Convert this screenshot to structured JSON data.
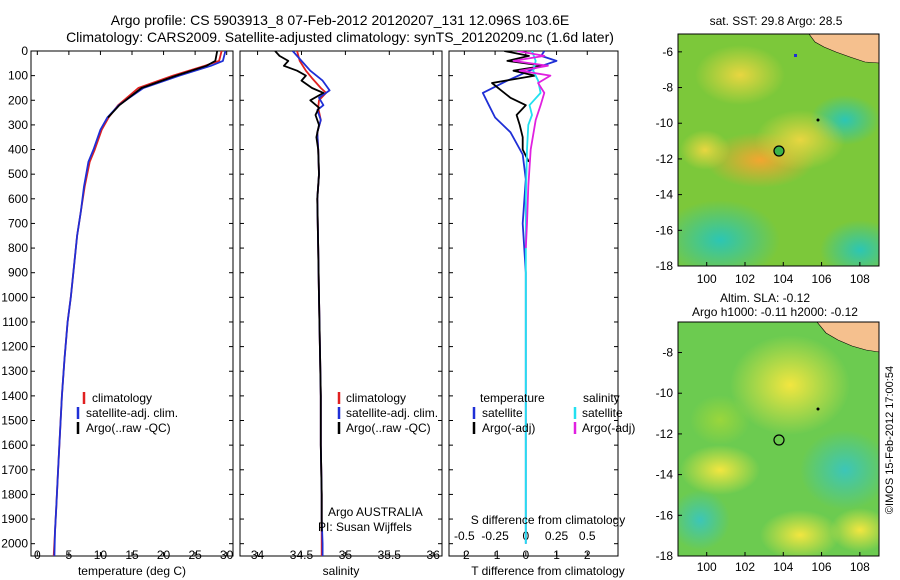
{
  "header": {
    "line1": "Argo profile: CS 5903913_8 07-Feb-2012 20120207_131 12.096S 103.6E",
    "line2": "Climatology: CARS2009. Satellite-adjusted climatology: synTS_20120209.nc (1.6d later)"
  },
  "side_label": "©IMOS 15-Feb-2012 17:00:54",
  "panel_temp": {
    "xlabel": "temperature (deg C)",
    "legend": [
      "climatology",
      "satellite-adj. clim.",
      "Argo(..raw -QC)"
    ]
  },
  "panel_sal": {
    "xlabel": "salinity",
    "legend": [
      "climatology",
      "satellite-adj. clim.",
      "Argo(..raw -QC)"
    ],
    "note1": "Argo AUSTRALIA",
    "note2": "PI: Susan Wijffels"
  },
  "panel_diff": {
    "xlabel": "T difference from climatology",
    "top_xlabel": "S difference from climatology",
    "legend_temperature_head": "temperature",
    "legend_salinity_head": "salinity",
    "legend_temp": [
      "satellite",
      "Argo(-adj)"
    ],
    "legend_sal": [
      "satellite",
      "Argo(-adj)"
    ]
  },
  "map_sst": {
    "title": "sat. SST: 29.8 Argo: 28.5"
  },
  "map_sla": {
    "title1": "Altim. SLA: -0.12",
    "title2": "Argo h1000: -0.11 h2000: -0.12"
  },
  "colors": {
    "climatology": "#e02020",
    "satellite": "#1f2fd6",
    "argo": "#000000",
    "sat_salinity": "#22e0f0",
    "argo_salinity": "#e020e0",
    "land": "#f5c08e"
  },
  "chart_data": [
    {
      "type": "line",
      "name": "temperature profile",
      "xlim": [
        -1,
        31
      ],
      "ylim": [
        2050,
        0
      ],
      "xticks": [
        0,
        5,
        10,
        15,
        20,
        25,
        30
      ],
      "yticks": [
        0,
        100,
        200,
        300,
        400,
        500,
        600,
        700,
        800,
        900,
        1000,
        1100,
        1200,
        1300,
        1400,
        1500,
        1600,
        1700,
        1800,
        1900,
        2000
      ],
      "series": [
        {
          "name": "climatology",
          "color": "#e02020",
          "x": [
            29.2,
            28.8,
            26.5,
            21.5,
            16.0,
            12.8,
            11.3,
            10.2,
            9.1,
            8.3,
            7.5,
            6.9,
            6.3,
            5.9,
            5.3,
            4.8,
            4.3,
            3.9,
            3.6,
            3.3,
            3.0,
            2.8,
            2.6
          ],
          "y": [
            0,
            40,
            60,
            100,
            150,
            220,
            270,
            320,
            400,
            450,
            550,
            650,
            750,
            850,
            1000,
            1100,
            1250,
            1400,
            1550,
            1700,
            1850,
            1950,
            2050
          ]
        },
        {
          "name": "satellite-adj. clim.",
          "color": "#1f2fd6",
          "x": [
            29.8,
            29.4,
            27.5,
            22.5,
            16.8,
            12.9,
            11.1,
            10.0,
            8.9,
            8.1,
            7.4,
            6.9,
            6.3,
            5.9,
            5.3,
            4.8,
            4.3,
            3.9,
            3.6,
            3.3,
            3.0,
            2.8,
            2.7
          ],
          "y": [
            0,
            40,
            60,
            100,
            150,
            220,
            270,
            320,
            400,
            450,
            550,
            650,
            750,
            850,
            1000,
            1100,
            1250,
            1400,
            1550,
            1700,
            1850,
            1950,
            2050
          ]
        },
        {
          "name": "Argo(..raw -QC)",
          "color": "#000000",
          "x": [
            28.5,
            28.2,
            26.8,
            22.0,
            16.5,
            13.0,
            11.2
          ],
          "y": [
            0,
            40,
            60,
            100,
            150,
            220,
            270
          ]
        }
      ]
    },
    {
      "type": "line",
      "name": "salinity profile",
      "xlim": [
        33.8,
        36.1
      ],
      "ylim": [
        2050,
        0
      ],
      "xticks": [
        34,
        34.5,
        35,
        35.5,
        36
      ],
      "series": [
        {
          "name": "climatology",
          "color": "#e02020",
          "x": [
            34.45,
            34.48,
            34.55,
            34.62,
            34.72,
            34.78,
            34.7,
            34.69,
            34.72,
            34.68,
            34.69,
            34.7,
            34.68,
            34.69,
            34.7,
            34.71,
            34.72,
            34.72,
            34.73,
            34.73,
            34.73,
            34.73
          ],
          "y": [
            0,
            40,
            80,
            110,
            150,
            170,
            200,
            230,
            280,
            330,
            400,
            500,
            600,
            800,
            1000,
            1200,
            1400,
            1600,
            1800,
            1900,
            2000,
            2050
          ]
        },
        {
          "name": "satellite-adj. clim.",
          "color": "#1f2fd6",
          "x": [
            34.4,
            34.5,
            34.6,
            34.74,
            34.82,
            34.7,
            34.75,
            34.68,
            34.72,
            34.68,
            34.69,
            34.7,
            34.68,
            34.69,
            34.7,
            34.71,
            34.72,
            34.72,
            34.73,
            34.73,
            34.74,
            34.74
          ],
          "y": [
            0,
            40,
            80,
            120,
            160,
            190,
            220,
            240,
            280,
            330,
            400,
            500,
            600,
            800,
            1000,
            1200,
            1400,
            1600,
            1800,
            1900,
            2000,
            2050
          ]
        },
        {
          "name": "Argo(..raw -QC)",
          "color": "#000000",
          "x": [
            34.2,
            34.25,
            34.35,
            34.3,
            34.45,
            34.55,
            34.5,
            34.62,
            34.75,
            34.6,
            34.7,
            34.66,
            34.7,
            34.67,
            34.69,
            34.7,
            34.68,
            34.69,
            34.7,
            34.71,
            34.72,
            34.72,
            34.73,
            34.73
          ],
          "y": [
            0,
            20,
            40,
            60,
            80,
            100,
            120,
            150,
            170,
            200,
            230,
            260,
            300,
            350,
            400,
            500,
            600,
            800,
            1000,
            1200,
            1400,
            1600,
            1800,
            1950
          ]
        }
      ]
    },
    {
      "type": "line",
      "name": "difference from climatology",
      "xlim": [
        -2.5,
        3.0
      ],
      "x2lim": [
        -0.625,
        0.75
      ],
      "ylim": [
        2050,
        0
      ],
      "xticks": [
        -2,
        -1,
        0,
        1,
        2
      ],
      "x2ticks": [
        -0.5,
        -0.25,
        0,
        0.25,
        0.5
      ],
      "series": [
        {
          "name": "satellite (temperature)",
          "color": "#1f2fd6",
          "x": [
            0.6,
            0.5,
            1.0,
            0.3,
            -0.6,
            -1.4,
            -1.2,
            -1.0,
            -0.5,
            -0.1,
            0.0,
            -0.1,
            0.0,
            0.0,
            0.0,
            0.0,
            0.0,
            0.0
          ],
          "y": [
            0,
            20,
            40,
            70,
            120,
            170,
            220,
            270,
            330,
            420,
            520,
            700,
            900,
            1100,
            1400,
            1700,
            1900,
            2000
          ]
        },
        {
          "name": "Argo(-adj) (temperature)",
          "color": "#000000",
          "x": [
            -0.7,
            0.1,
            -0.6,
            0.6,
            -0.4,
            0.3,
            -1.1,
            -0.8,
            -0.5,
            0.0,
            -0.3,
            -0.2,
            -0.1,
            -0.1,
            0.1
          ],
          "y": [
            0,
            20,
            40,
            60,
            80,
            100,
            130,
            160,
            190,
            220,
            260,
            300,
            350,
            400,
            450
          ]
        },
        {
          "name": "satellite (salinity)",
          "color": "#22e0f0",
          "x": [
            0.05,
            0.08,
            0.06,
            0.1,
            0.12,
            0.03,
            0.05,
            0.02,
            0.01,
            0.0,
            0.0,
            0.0,
            0.0,
            0.0
          ],
          "y": [
            0,
            40,
            80,
            120,
            170,
            220,
            260,
            300,
            400,
            600,
            900,
            1300,
            1700,
            2000
          ]
        },
        {
          "name": "Argo(-adj) (salinity)",
          "color": "#e020e0",
          "x": [
            -0.07,
            0.15,
            -0.1,
            0.18,
            -0.05,
            0.2,
            0.1,
            0.15,
            0.12,
            0.08,
            0.04,
            0.02,
            0.01,
            0.0
          ],
          "y": [
            0,
            20,
            40,
            60,
            80,
            100,
            130,
            170,
            220,
            280,
            400,
            550,
            700,
            800
          ]
        }
      ]
    },
    {
      "type": "heatmap",
      "name": "sat. SST map",
      "xlim": [
        98.5,
        109
      ],
      "ylim": [
        -18,
        -5
      ],
      "xticks": [
        100,
        102,
        104,
        106,
        108
      ],
      "yticks": [
        -6,
        -8,
        -10,
        -12,
        -14,
        -16,
        -18
      ],
      "argo_position": {
        "lon": 103.6,
        "lat": -12.096
      }
    },
    {
      "type": "heatmap",
      "name": "altimetry SLA map",
      "xlim": [
        98.5,
        109
      ],
      "ylim": [
        -18,
        -6.5
      ],
      "xticks": [
        100,
        102,
        104,
        106,
        108
      ],
      "yticks": [
        -8,
        -10,
        -12,
        -14,
        -16,
        -18
      ],
      "argo_position": {
        "lon": 103.6,
        "lat": -12.096
      }
    }
  ]
}
